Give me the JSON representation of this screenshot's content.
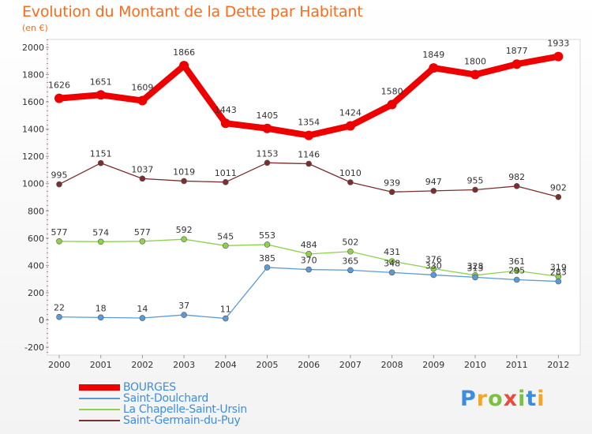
{
  "header": {
    "title": "Evolution du Montant de la Dette par Habitant",
    "subtitle": "(en €)"
  },
  "logo": {
    "letters": [
      "P",
      "r",
      "o",
      "x",
      "i",
      "t",
      "i"
    ],
    "colors": [
      "#3b8de0",
      "#f5a623",
      "#7ac143",
      "#e84c3d",
      "#7ac143",
      "#3b8de0",
      "#f5a623"
    ]
  },
  "chart_data": {
    "type": "line",
    "x": [
      "2000",
      "2001",
      "2002",
      "2003",
      "2004",
      "2005",
      "2006",
      "2007",
      "2008",
      "2009",
      "2010",
      "2011",
      "2012"
    ],
    "ylim": [
      -200,
      2000
    ],
    "yticks": [
      "-200",
      "0",
      "200",
      "400",
      "600",
      "800",
      "1000",
      "1200",
      "1400",
      "1600",
      "1800",
      "2000"
    ],
    "grid": false,
    "legend": "bottom-left",
    "series": [
      {
        "name": "BOURGES",
        "color": "#ee0000",
        "values": [
          1626,
          1651,
          1609,
          1866,
          1443,
          1405,
          1354,
          1424,
          1580,
          1849,
          1800,
          1877,
          1933
        ],
        "labels": [
          "1626",
          "1651",
          "1609",
          "1866",
          "1443",
          "1405",
          "1354",
          "1424",
          "1580",
          "1849",
          "1800",
          "1877",
          "1933"
        ]
      },
      {
        "name": "Saint-Doulchard",
        "color": "#5b9bd5",
        "values": [
          22,
          18,
          14,
          37,
          11,
          385,
          370,
          365,
          348,
          330,
          313,
          295,
          283
        ],
        "labels": [
          "22",
          "18",
          "14",
          "37",
          "11",
          "385",
          "370",
          "365",
          "348",
          "330",
          "313",
          "295",
          "283"
        ]
      },
      {
        "name": "La Chapelle-Saint-Ursin",
        "color": "#8fd14f",
        "values": [
          577,
          574,
          577,
          592,
          545,
          553,
          484,
          502,
          431,
          376,
          328,
          361,
          319
        ],
        "labels": [
          "577",
          "574",
          "577",
          "592",
          "545",
          "553",
          "484",
          "502",
          "431",
          "376",
          "328",
          "361",
          "319"
        ]
      },
      {
        "name": "Saint-Germain-du-Puy",
        "color": "#7a2e2e",
        "values": [
          995,
          1151,
          1037,
          1019,
          1011,
          1153,
          1146,
          1010,
          939,
          947,
          955,
          982,
          902
        ],
        "labels": [
          "995",
          "1151",
          "1037",
          "1019",
          "1011",
          "1153",
          "1146",
          "1010",
          "939",
          "947",
          "955",
          "982",
          "902"
        ]
      }
    ]
  }
}
